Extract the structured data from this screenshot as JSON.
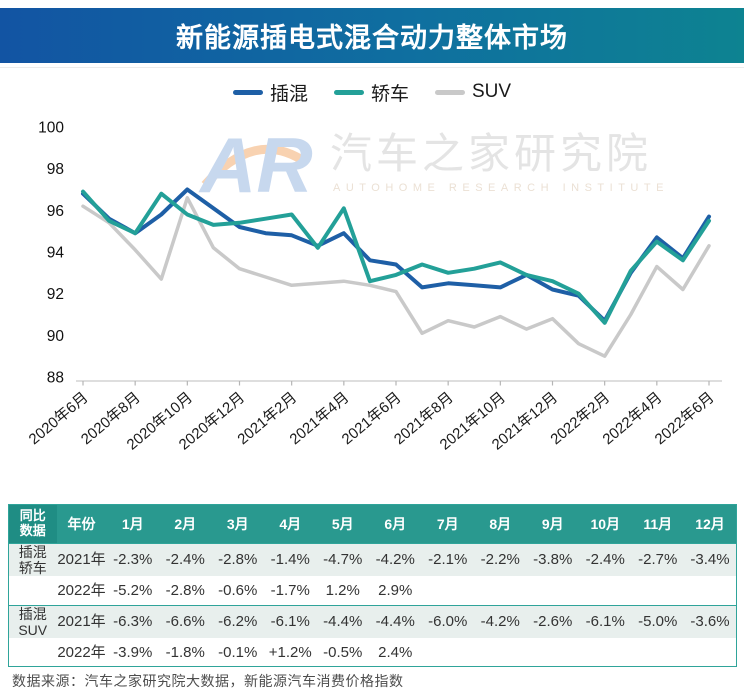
{
  "header": {
    "title": "新能源插电式混合动力整体市场",
    "gradient_left": "#1254a3",
    "gradient_right": "#0d8391"
  },
  "legend": [
    {
      "label": "插混",
      "color": "#1e5fa6"
    },
    {
      "label": "轿车",
      "color": "#23a098"
    },
    {
      "label": "SUV",
      "color": "#c9c9c9"
    }
  ],
  "watermark": {
    "logo_text": "AR",
    "logo_color": "#c5d6ee",
    "swoosh_color": "#f2a96a",
    "cn_text": "汽车之家研究院",
    "en_text": "AUTOHOME RESEARCH INSTITUTE"
  },
  "chart_data": {
    "type": "line",
    "title": "",
    "xlabel": "",
    "ylabel": "",
    "ylim": [
      88,
      100
    ],
    "ytick_step": 2,
    "grid": false,
    "legend_position": "top",
    "x": [
      "2020年6月",
      "2020年7月",
      "2020年8月",
      "2020年9月",
      "2020年10月",
      "2020年11月",
      "2020年12月",
      "2021年1月",
      "2021年2月",
      "2021年3月",
      "2021年4月",
      "2021年5月",
      "2021年6月",
      "2021年7月",
      "2021年8月",
      "2021年9月",
      "2021年10月",
      "2021年11月",
      "2021年12月",
      "2022年1月",
      "2022年2月",
      "2022年3月",
      "2022年4月",
      "2022年5月",
      "2022年6月"
    ],
    "x_tick_every": 2,
    "series": [
      {
        "name": "插混",
        "color": "#1e5fa6",
        "width": 4,
        "values": [
          96.8,
          95.6,
          94.9,
          95.8,
          97.0,
          96.1,
          95.2,
          94.9,
          94.8,
          94.3,
          94.9,
          93.6,
          93.4,
          92.3,
          92.5,
          92.4,
          92.3,
          92.9,
          92.2,
          91.9,
          90.7,
          93.0,
          94.7,
          93.7,
          95.7
        ]
      },
      {
        "name": "轿车",
        "color": "#23a098",
        "width": 4,
        "values": [
          96.9,
          95.5,
          94.9,
          96.8,
          95.8,
          95.3,
          95.4,
          95.6,
          95.8,
          94.2,
          96.1,
          92.6,
          92.9,
          93.4,
          93.0,
          93.2,
          93.5,
          92.9,
          92.6,
          92.0,
          90.6,
          93.1,
          94.5,
          93.6,
          95.5
        ]
      },
      {
        "name": "SUV",
        "color": "#c9c9c9",
        "width": 3.5,
        "values": [
          96.2,
          95.4,
          94.1,
          92.7,
          96.6,
          94.2,
          93.2,
          92.8,
          92.4,
          92.5,
          92.6,
          92.4,
          92.1,
          90.1,
          90.7,
          90.4,
          90.9,
          90.3,
          90.8,
          89.6,
          89.0,
          91.0,
          93.3,
          92.2,
          94.3
        ]
      }
    ]
  },
  "table": {
    "corner_label": "同比\n数据",
    "year_header": "年份",
    "months": [
      "1月",
      "2月",
      "3月",
      "4月",
      "5月",
      "6月",
      "7月",
      "8月",
      "9月",
      "10月",
      "11月",
      "12月"
    ],
    "groups": [
      {
        "label": "插混\n轿车",
        "rows": [
          {
            "year": "2021年",
            "values": [
              "-2.3%",
              "-2.4%",
              "-2.8%",
              "-1.4%",
              "-4.7%",
              "-4.2%",
              "-2.1%",
              "-2.2%",
              "-3.8%",
              "-2.4%",
              "-2.7%",
              "-3.4%"
            ]
          },
          {
            "year": "2022年",
            "values": [
              "-5.2%",
              "-2.8%",
              "-0.6%",
              "-1.7%",
              "1.2%",
              "2.9%",
              "",
              "",
              "",
              "",
              "",
              ""
            ]
          }
        ]
      },
      {
        "label": "插混\nSUV",
        "rows": [
          {
            "year": "2021年",
            "values": [
              "-6.3%",
              "-6.6%",
              "-6.2%",
              "-6.1%",
              "-4.4%",
              "-4.4%",
              "-6.0%",
              "-4.2%",
              "-2.6%",
              "-6.1%",
              "-5.0%",
              "-3.6%"
            ]
          },
          {
            "year": "2022年",
            "values": [
              "-3.9%",
              "-1.8%",
              "-0.1%",
              "+1.2%",
              "-0.5%",
              "2.4%",
              "",
              "",
              "",
              "",
              "",
              ""
            ]
          }
        ]
      }
    ]
  },
  "footer": {
    "source": "数据来源：汽车之家研究院大数据，新能源汽车消费价格指数"
  }
}
